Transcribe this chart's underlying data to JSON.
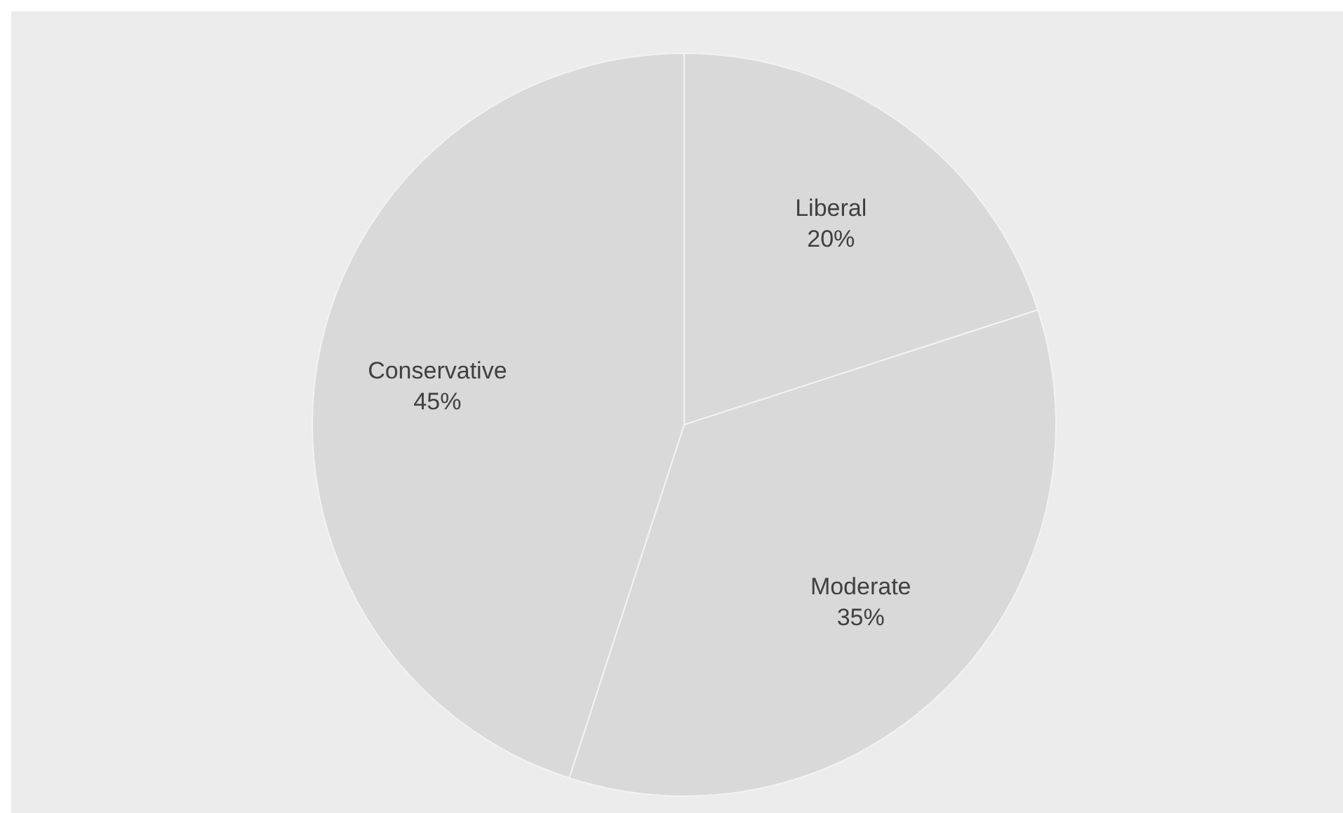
{
  "chart_data": {
    "type": "pie",
    "categories": [
      "Liberal",
      "Moderate",
      "Conservative"
    ],
    "values": [
      20,
      35,
      45
    ],
    "colors": [
      "#d9d9d9",
      "#d9d9d9",
      "#d9d9d9"
    ],
    "value_labels": [
      "20%",
      "35%",
      "45%"
    ]
  }
}
